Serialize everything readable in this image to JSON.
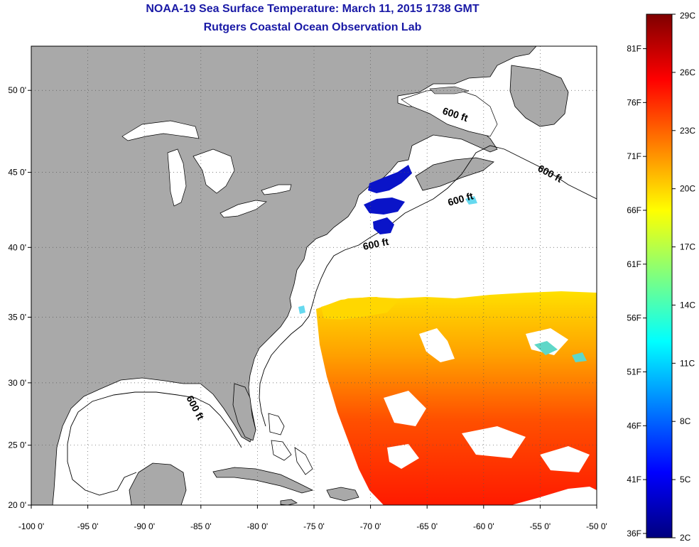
{
  "header": {
    "title": "NOAA-19 Sea Surface Temperature:  March 11, 2015 1738 GMT",
    "subtitle": "Rutgers Coastal Ocean Observation Lab"
  },
  "map": {
    "lon_range": [
      -100,
      -50
    ],
    "lat_range": [
      20,
      52.5
    ],
    "lon_ticks": [
      "-100 0'",
      "-95 0'",
      "-90 0'",
      "-85 0'",
      "-80 0'",
      "-75 0'",
      "-70 0'",
      "-65 0'",
      "-60 0'",
      "-55 0'",
      "-50 0'"
    ],
    "lat_ticks": [
      "20 0'",
      "25 0'",
      "30 0'",
      "35 0'",
      "40 0'",
      "45 0'",
      "50 0'"
    ],
    "contour_label": "600 ft",
    "land_color": "#a9a9a9",
    "water_color": "#ffffff",
    "grid": true
  },
  "colorbar": {
    "labels_f": [
      "81F",
      "76F",
      "71F",
      "66F",
      "61F",
      "56F",
      "51F",
      "46F",
      "41F",
      "36F"
    ],
    "labels_c": [
      "29C",
      "26C",
      "23C",
      "20C",
      "17C",
      "14C",
      "11C",
      "8C",
      "5C",
      "2C"
    ],
    "min_c": 2,
    "max_c": 29,
    "colors": [
      "#00007f",
      "#0000ff",
      "#007fff",
      "#00ffff",
      "#7fff7f",
      "#ffff00",
      "#ff7f00",
      "#ff0000",
      "#7f0000"
    ]
  }
}
